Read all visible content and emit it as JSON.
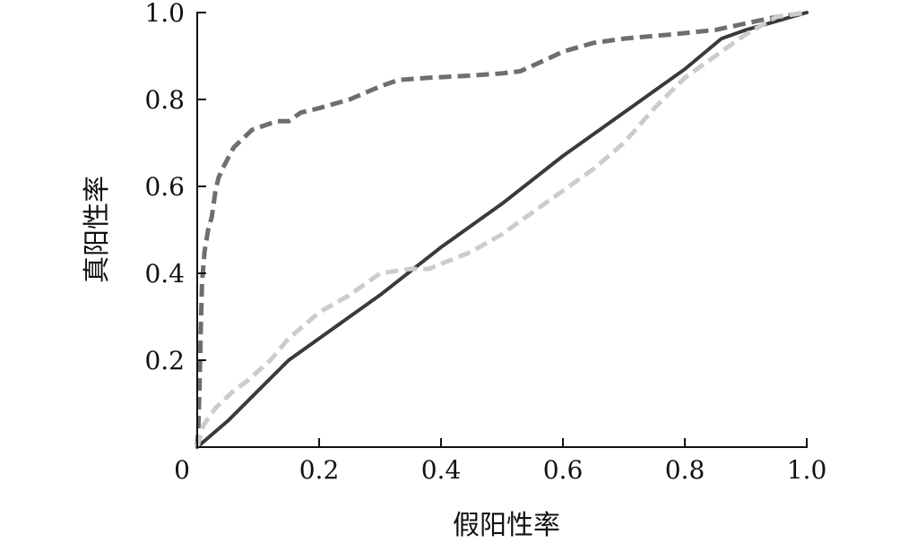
{
  "chart_data": {
    "type": "line",
    "title": "",
    "xlabel": "假阳性率",
    "ylabel": "真阳性率",
    "xlim": [
      0,
      1.0
    ],
    "ylim": [
      0,
      1.0
    ],
    "grid": false,
    "legend": "none",
    "x_ticks": [
      {
        "value": 0,
        "label": "0"
      },
      {
        "value": 0.2,
        "label": "0.2"
      },
      {
        "value": 0.4,
        "label": "0.4"
      },
      {
        "value": 0.6,
        "label": "0.6"
      },
      {
        "value": 0.8,
        "label": "0.8"
      },
      {
        "value": 1.0,
        "label": "1.0"
      }
    ],
    "y_ticks": [
      {
        "value": 0.2,
        "label": "0.2"
      },
      {
        "value": 0.4,
        "label": "0.4"
      },
      {
        "value": 0.6,
        "label": "0.6"
      },
      {
        "value": 0.8,
        "label": "0.8"
      },
      {
        "value": 1.0,
        "label": "1.0"
      }
    ],
    "series": [
      {
        "style": "dashed",
        "color": "#6e6e6e",
        "points": [
          [
            0.0,
            0.0
          ],
          [
            0.002,
            0.05
          ],
          [
            0.004,
            0.15
          ],
          [
            0.006,
            0.28
          ],
          [
            0.008,
            0.38
          ],
          [
            0.012,
            0.45
          ],
          [
            0.018,
            0.5
          ],
          [
            0.024,
            0.53
          ],
          [
            0.03,
            0.59
          ],
          [
            0.035,
            0.62
          ],
          [
            0.045,
            0.65
          ],
          [
            0.06,
            0.69
          ],
          [
            0.075,
            0.71
          ],
          [
            0.09,
            0.73
          ],
          [
            0.11,
            0.74
          ],
          [
            0.13,
            0.75
          ],
          [
            0.15,
            0.75
          ],
          [
            0.17,
            0.77
          ],
          [
            0.2,
            0.78
          ],
          [
            0.25,
            0.8
          ],
          [
            0.3,
            0.83
          ],
          [
            0.33,
            0.845
          ],
          [
            0.38,
            0.85
          ],
          [
            0.45,
            0.855
          ],
          [
            0.5,
            0.86
          ],
          [
            0.53,
            0.865
          ],
          [
            0.57,
            0.89
          ],
          [
            0.6,
            0.91
          ],
          [
            0.65,
            0.93
          ],
          [
            0.7,
            0.94
          ],
          [
            0.78,
            0.95
          ],
          [
            0.85,
            0.96
          ],
          [
            0.9,
            0.975
          ],
          [
            0.95,
            0.99
          ],
          [
            1.0,
            1.0
          ]
        ]
      },
      {
        "style": "solid",
        "color": "#3a3a3a",
        "points": [
          [
            0.0,
            0.0
          ],
          [
            0.05,
            0.06
          ],
          [
            0.1,
            0.13
          ],
          [
            0.15,
            0.2
          ],
          [
            0.2,
            0.25
          ],
          [
            0.3,
            0.35
          ],
          [
            0.4,
            0.46
          ],
          [
            0.5,
            0.56
          ],
          [
            0.6,
            0.67
          ],
          [
            0.7,
            0.77
          ],
          [
            0.8,
            0.87
          ],
          [
            0.86,
            0.94
          ],
          [
            0.9,
            0.96
          ],
          [
            0.95,
            0.98
          ],
          [
            1.0,
            1.0
          ]
        ]
      },
      {
        "style": "dashed",
        "color": "#cccccc",
        "points": [
          [
            0.0,
            0.0
          ],
          [
            0.01,
            0.05
          ],
          [
            0.03,
            0.09
          ],
          [
            0.06,
            0.13
          ],
          [
            0.08,
            0.15
          ],
          [
            0.12,
            0.2
          ],
          [
            0.15,
            0.25
          ],
          [
            0.2,
            0.31
          ],
          [
            0.25,
            0.35
          ],
          [
            0.28,
            0.38
          ],
          [
            0.3,
            0.4
          ],
          [
            0.35,
            0.41
          ],
          [
            0.38,
            0.41
          ],
          [
            0.45,
            0.45
          ],
          [
            0.5,
            0.49
          ],
          [
            0.55,
            0.54
          ],
          [
            0.6,
            0.59
          ],
          [
            0.65,
            0.64
          ],
          [
            0.7,
            0.7
          ],
          [
            0.75,
            0.78
          ],
          [
            0.8,
            0.85
          ],
          [
            0.85,
            0.9
          ],
          [
            0.9,
            0.95
          ],
          [
            0.95,
            0.99
          ],
          [
            1.0,
            1.0
          ]
        ]
      }
    ]
  }
}
